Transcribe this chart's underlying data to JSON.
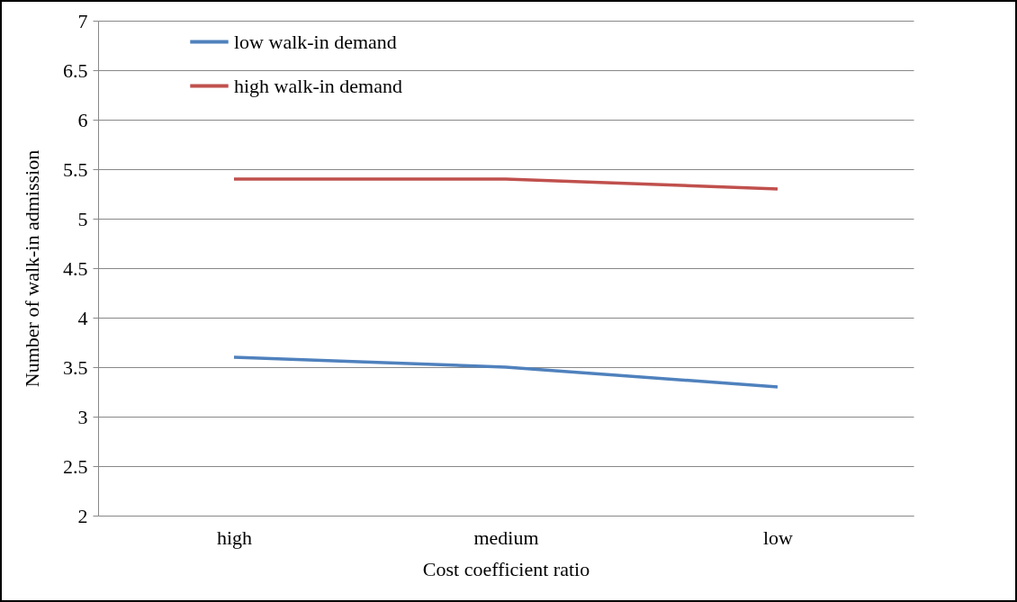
{
  "chart_data": {
    "type": "line",
    "xlabel": "Cost coefficient  ratio",
    "ylabel": "Number of walk-in  admission",
    "categories": [
      "high",
      "medium",
      "low"
    ],
    "series": [
      {
        "name": "low walk-in demand",
        "color": "#4f81bd",
        "values": [
          3.6,
          3.5,
          3.3
        ]
      },
      {
        "name": "high walk-in demand",
        "color": "#c0504d",
        "values": [
          5.4,
          5.4,
          5.3
        ]
      }
    ],
    "ylim": [
      2,
      7
    ],
    "yticks": [
      2,
      2.5,
      3,
      3.5,
      4,
      4.5,
      5,
      5.5,
      6,
      6.5,
      7
    ],
    "grid": "y",
    "legend": "top left",
    "marker": "none",
    "line_style": "solid"
  }
}
